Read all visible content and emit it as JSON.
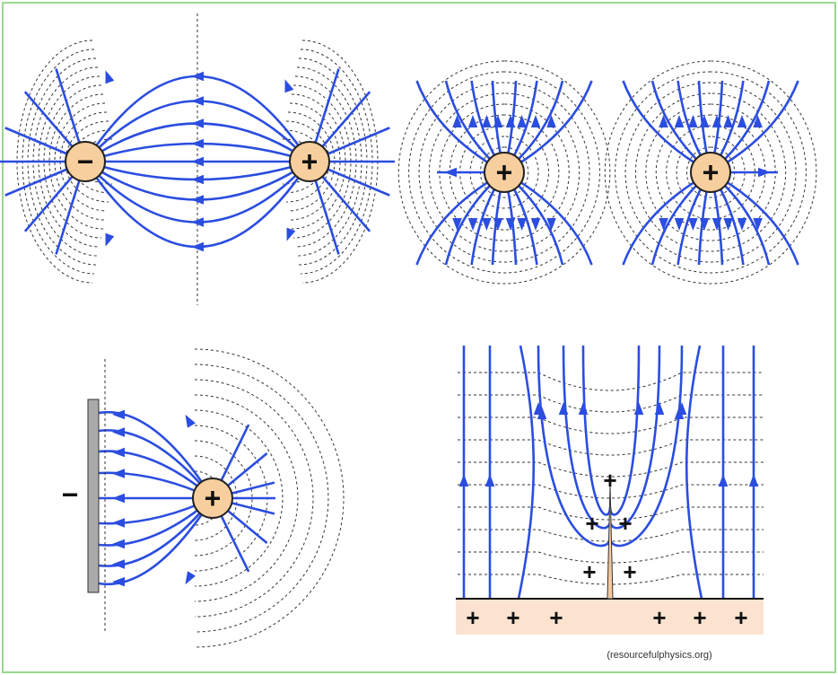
{
  "charges": {
    "dipole": [
      "−",
      "+"
    ],
    "like_pair": [
      "+",
      "+"
    ],
    "plate_charge": "+",
    "plate": "−"
  },
  "surface_charges": {
    "ground": [
      "+",
      "+",
      "+",
      "+",
      "+",
      "+"
    ],
    "rod": [
      "+",
      "+",
      "+",
      "+",
      "+"
    ]
  },
  "credit": "(resourcefulphysics.org)"
}
